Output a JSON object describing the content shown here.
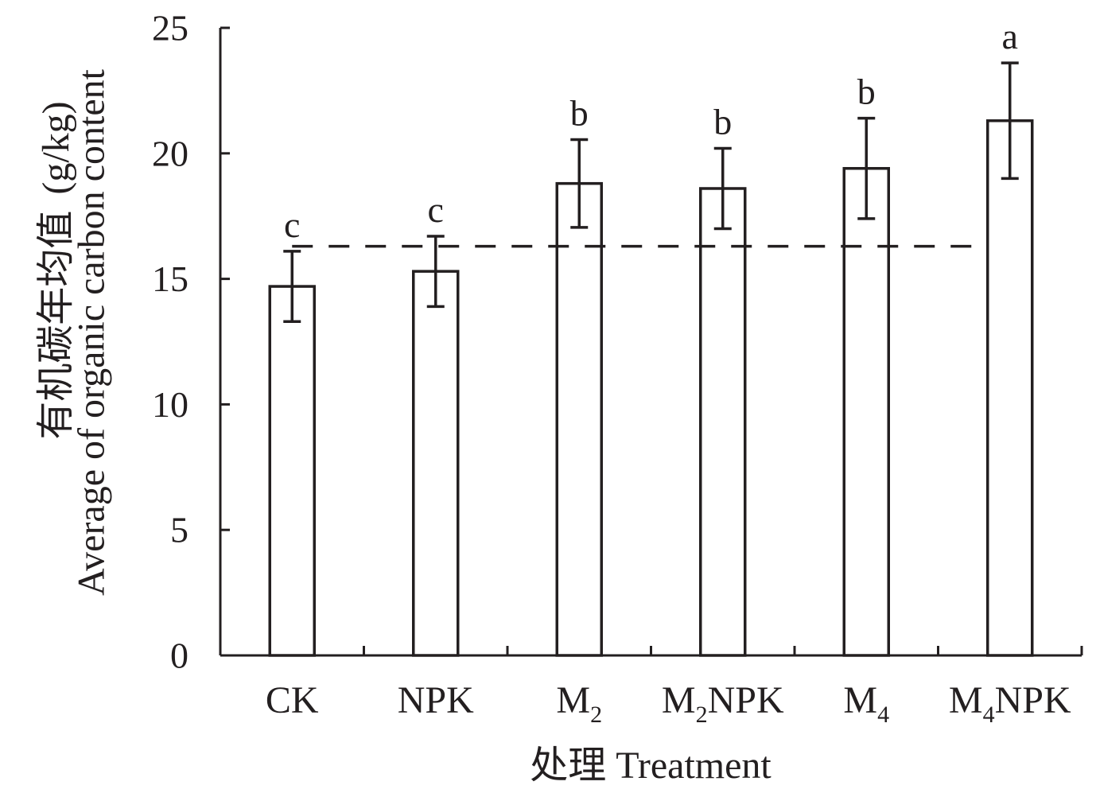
{
  "chart_data": {
    "type": "bar",
    "categories": [
      {
        "base": "CK",
        "sub": "",
        "rest": ""
      },
      {
        "base": "NPK",
        "sub": "",
        "rest": ""
      },
      {
        "base": "M",
        "sub": "2",
        "rest": ""
      },
      {
        "base": "M",
        "sub": "2",
        "rest": "NPK"
      },
      {
        "base": "M",
        "sub": "4",
        "rest": ""
      },
      {
        "base": "M",
        "sub": "4",
        "rest": "NPK"
      }
    ],
    "series": [
      {
        "values": [
          14.7,
          15.3,
          18.8,
          18.6,
          19.4,
          21.3
        ],
        "error": [
          1.4,
          1.4,
          1.75,
          1.6,
          2.0,
          2.3
        ],
        "significance": [
          "c",
          "c",
          "b",
          "b",
          "b",
          "a"
        ]
      }
    ],
    "reference_line": {
      "value": 16.3,
      "style": "dashed"
    },
    "ylim": [
      0,
      25
    ],
    "yticks": [
      "0",
      "5",
      "10",
      "15",
      "20",
      "25"
    ],
    "xlabel": "处理 Treatment",
    "ylabel_cn": "有机碳年均值",
    "ylabel_en": "Average of organic carbon content",
    "ylabel_unit": "(g/kg)",
    "grid": false,
    "legend": "none"
  }
}
